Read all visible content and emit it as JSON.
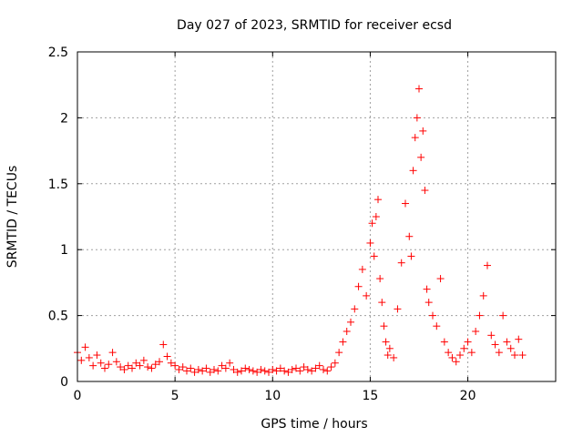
{
  "chart_data": {
    "type": "scatter",
    "title": "Day 027 of 2023, SRMTID for receiver ecsd",
    "xlabel": "GPS time / hours",
    "ylabel": "SRMTID / TECUs",
    "xlim": [
      0,
      24.5
    ],
    "ylim": [
      0,
      2.5
    ],
    "xticks": [
      0,
      5,
      10,
      15,
      20
    ],
    "xtick_labels": [
      "0",
      "5",
      "10",
      "15",
      "20"
    ],
    "yticks": [
      0,
      0.5,
      1,
      1.5,
      2,
      2.5
    ],
    "ytick_labels": [
      "0",
      "0.5",
      "1",
      "1.5",
      "2",
      "2.5"
    ],
    "grid": true,
    "marker": "+",
    "series": [
      {
        "name": "SRMTID",
        "color": "#ff0000",
        "x": [
          0.0,
          0.2,
          0.4,
          0.6,
          0.8,
          1.0,
          1.2,
          1.4,
          1.6,
          1.8,
          2.0,
          2.2,
          2.4,
          2.6,
          2.8,
          3.0,
          3.2,
          3.4,
          3.6,
          3.8,
          4.0,
          4.2,
          4.4,
          4.6,
          4.8,
          5.0,
          5.2,
          5.4,
          5.6,
          5.8,
          6.0,
          6.2,
          6.4,
          6.6,
          6.8,
          7.0,
          7.2,
          7.4,
          7.6,
          7.8,
          8.0,
          8.2,
          8.4,
          8.6,
          8.8,
          9.0,
          9.2,
          9.4,
          9.6,
          9.8,
          10.0,
          10.2,
          10.4,
          10.6,
          10.8,
          11.0,
          11.2,
          11.4,
          11.6,
          11.8,
          12.0,
          12.2,
          12.4,
          12.6,
          12.8,
          13.0,
          13.2,
          13.4,
          13.6,
          13.8,
          14.0,
          14.2,
          14.4,
          14.6,
          14.8,
          15.0,
          15.1,
          15.2,
          15.3,
          15.4,
          15.5,
          15.6,
          15.7,
          15.8,
          15.9,
          16.0,
          16.2,
          16.4,
          16.6,
          16.8,
          17.0,
          17.1,
          17.2,
          17.3,
          17.4,
          17.5,
          17.6,
          17.7,
          17.8,
          17.9,
          18.0,
          18.2,
          18.4,
          18.6,
          18.8,
          19.0,
          19.2,
          19.4,
          19.6,
          19.8,
          20.0,
          20.2,
          20.4,
          20.6,
          20.8,
          21.0,
          21.2,
          21.4,
          21.6,
          21.8,
          22.0,
          22.2,
          22.4,
          22.6,
          22.8
        ],
        "y": [
          0.22,
          0.16,
          0.26,
          0.18,
          0.12,
          0.2,
          0.14,
          0.1,
          0.13,
          0.22,
          0.15,
          0.11,
          0.09,
          0.12,
          0.1,
          0.14,
          0.12,
          0.16,
          0.11,
          0.1,
          0.13,
          0.15,
          0.28,
          0.19,
          0.14,
          0.12,
          0.09,
          0.11,
          0.08,
          0.1,
          0.07,
          0.09,
          0.08,
          0.1,
          0.07,
          0.09,
          0.08,
          0.12,
          0.1,
          0.14,
          0.09,
          0.07,
          0.08,
          0.1,
          0.09,
          0.08,
          0.07,
          0.09,
          0.08,
          0.07,
          0.09,
          0.08,
          0.1,
          0.08,
          0.07,
          0.09,
          0.1,
          0.08,
          0.11,
          0.09,
          0.08,
          0.1,
          0.12,
          0.09,
          0.08,
          0.11,
          0.14,
          0.22,
          0.3,
          0.38,
          0.45,
          0.55,
          0.72,
          0.85,
          0.65,
          1.05,
          1.2,
          0.95,
          1.25,
          1.38,
          0.78,
          0.6,
          0.42,
          0.3,
          0.2,
          0.25,
          0.18,
          0.55,
          0.9,
          1.35,
          1.1,
          0.95,
          1.6,
          1.85,
          2.0,
          2.22,
          1.7,
          1.9,
          1.45,
          0.7,
          0.6,
          0.5,
          0.42,
          0.78,
          0.3,
          0.22,
          0.18,
          0.15,
          0.2,
          0.25,
          0.3,
          0.22,
          0.38,
          0.5,
          0.65,
          0.88,
          0.35,
          0.28,
          0.22,
          0.5,
          0.3,
          0.25,
          0.2,
          0.32,
          0.2
        ]
      }
    ]
  }
}
